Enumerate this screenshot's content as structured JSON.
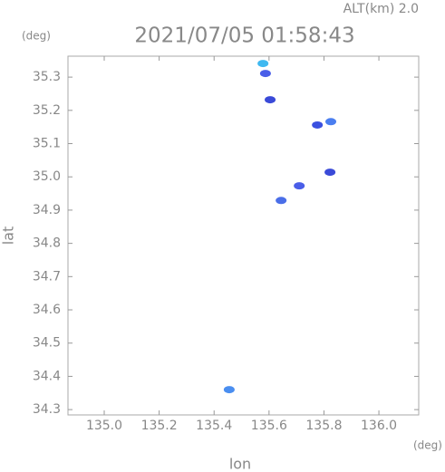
{
  "chart_data": {
    "type": "scatter",
    "title": "2021/07/05 01:58:43",
    "subtitle": "ALT(km) 2.0",
    "x_label": "lon",
    "y_label": "lat",
    "x_unit": "(deg)",
    "y_unit": "(deg)",
    "x": [
      135.578,
      135.587,
      135.604,
      135.776,
      135.825,
      135.822,
      135.71,
      135.644,
      135.455
    ],
    "y": [
      35.341,
      35.311,
      35.232,
      35.156,
      35.166,
      35.014,
      34.973,
      34.929,
      34.36
    ],
    "colors": [
      "#3fb8f0",
      "#4a5ee8",
      "#3a4ad8",
      "#3a50e0",
      "#4a7ef0",
      "#3a4ad8",
      "#4a5ee8",
      "#4a6ee8",
      "#4a8ef0"
    ],
    "xlim": [
      134.868,
      136.145
    ],
    "ylim": [
      34.284,
      35.363
    ],
    "xticks": [
      {
        "value": 135,
        "label": "135.0"
      },
      135.2,
      135.4,
      135.6,
      135.8,
      {
        "value": 136,
        "label": "136.0"
      }
    ],
    "yticks": [
      34.3,
      34.4,
      34.5,
      34.6,
      34.7,
      34.8,
      34.9,
      {
        "value": 35,
        "label": "35.0"
      },
      35.1,
      35.2,
      35.3
    ]
  }
}
